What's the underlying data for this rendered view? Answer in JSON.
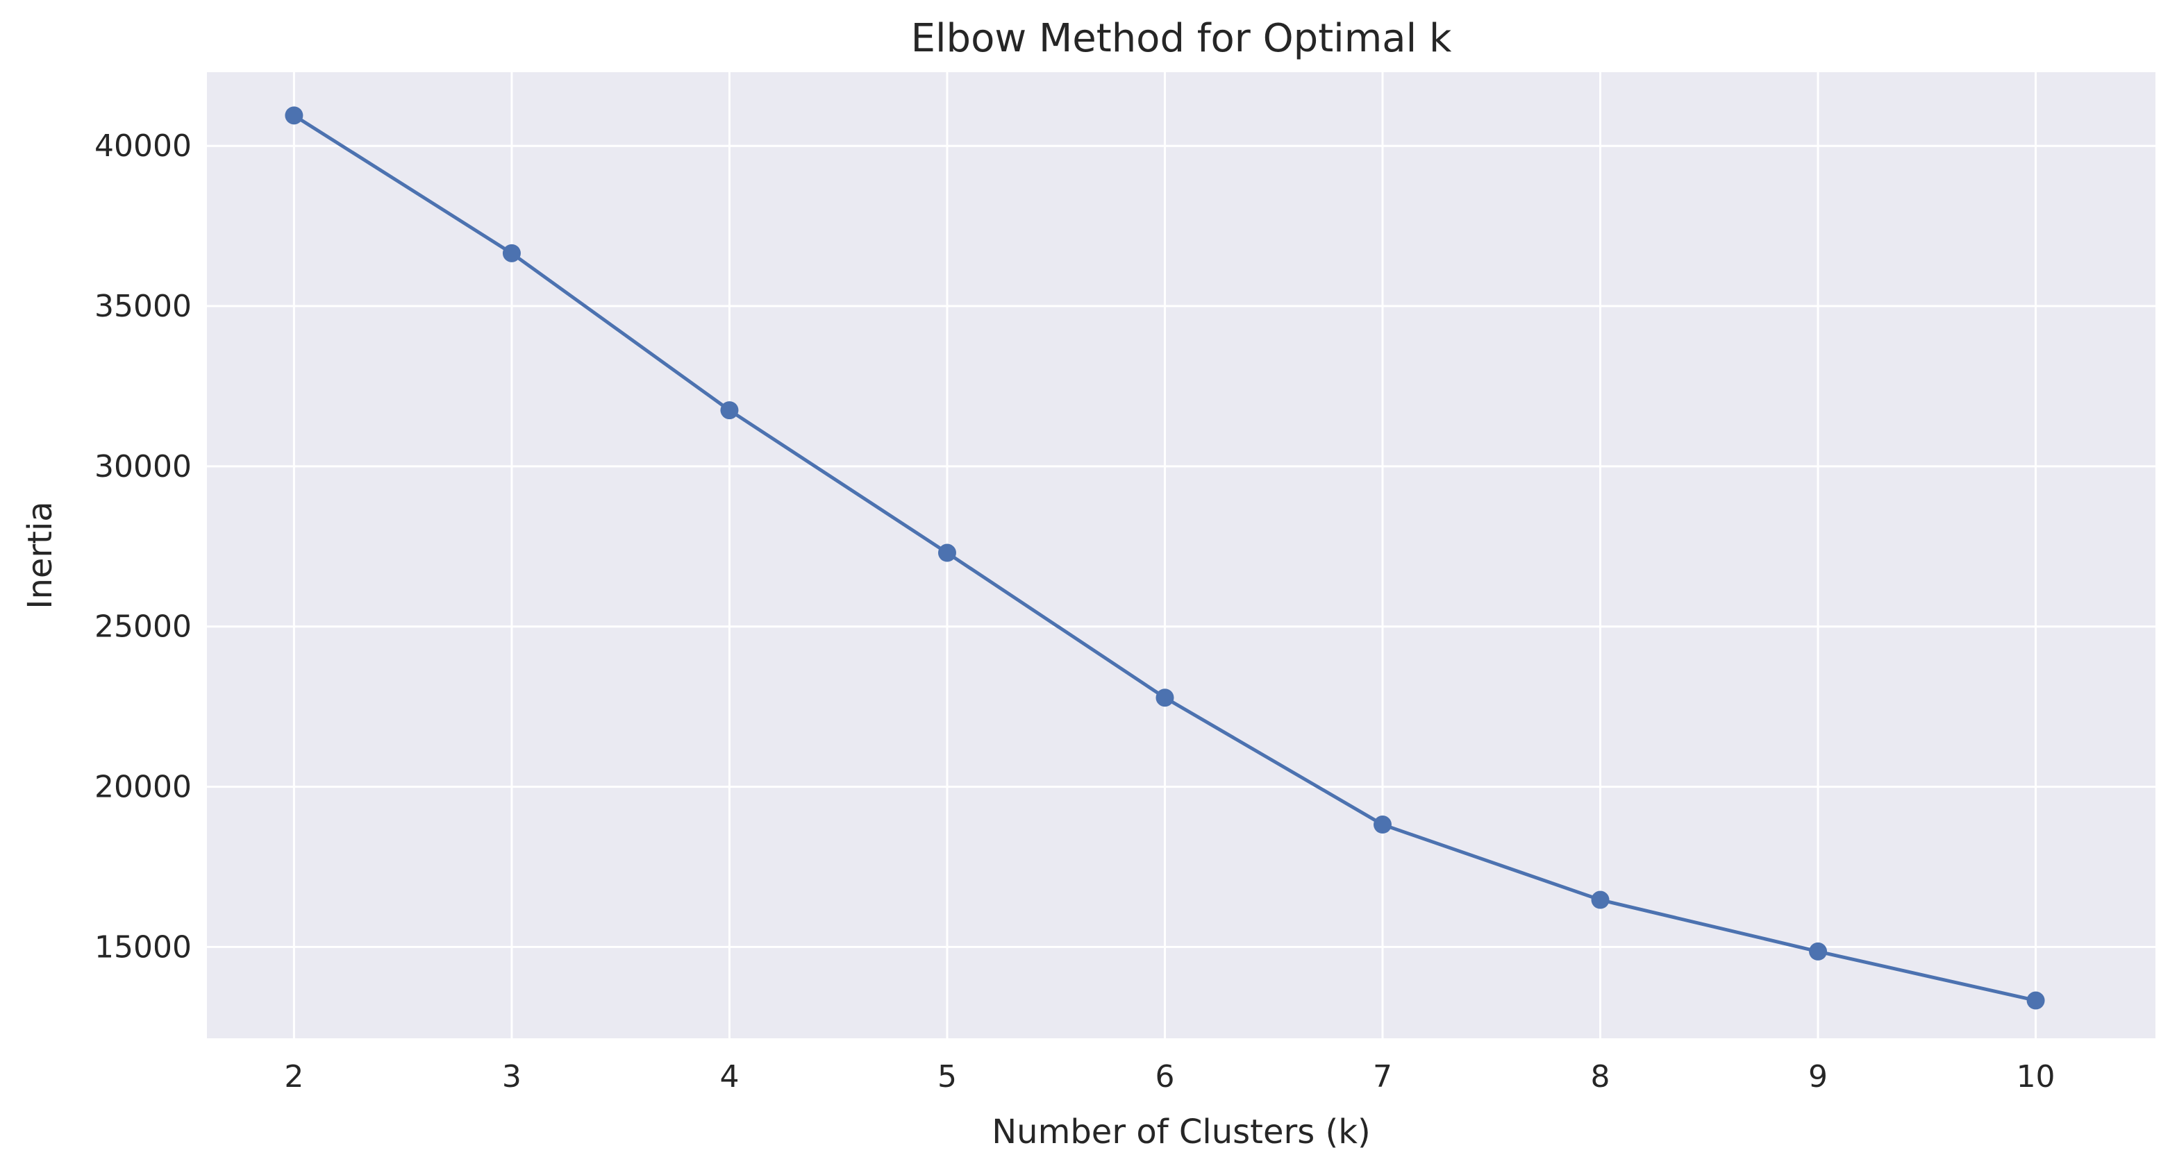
{
  "chart_data": {
    "type": "line",
    "title": "Elbow Method for Optimal k",
    "xlabel": "Number of Clusters (k)",
    "ylabel": "Inertia",
    "x": [
      2,
      3,
      4,
      5,
      6,
      7,
      8,
      9,
      10
    ],
    "series": [
      {
        "values": [
          40950,
          36650,
          31750,
          27300,
          22780,
          18820,
          16470,
          14860,
          13330
        ]
      }
    ],
    "xticks": [
      2,
      3,
      4,
      5,
      6,
      7,
      8,
      9,
      10
    ],
    "yticks": [
      15000,
      20000,
      25000,
      30000,
      35000,
      40000
    ],
    "xlim": [
      1.6,
      10.55
    ],
    "ylim": [
      12150,
      42300
    ],
    "grid": true,
    "colors": {
      "background": "#eaeaf2",
      "grid": "#ffffff",
      "series": "#4c72b0",
      "text": "#262626"
    }
  }
}
